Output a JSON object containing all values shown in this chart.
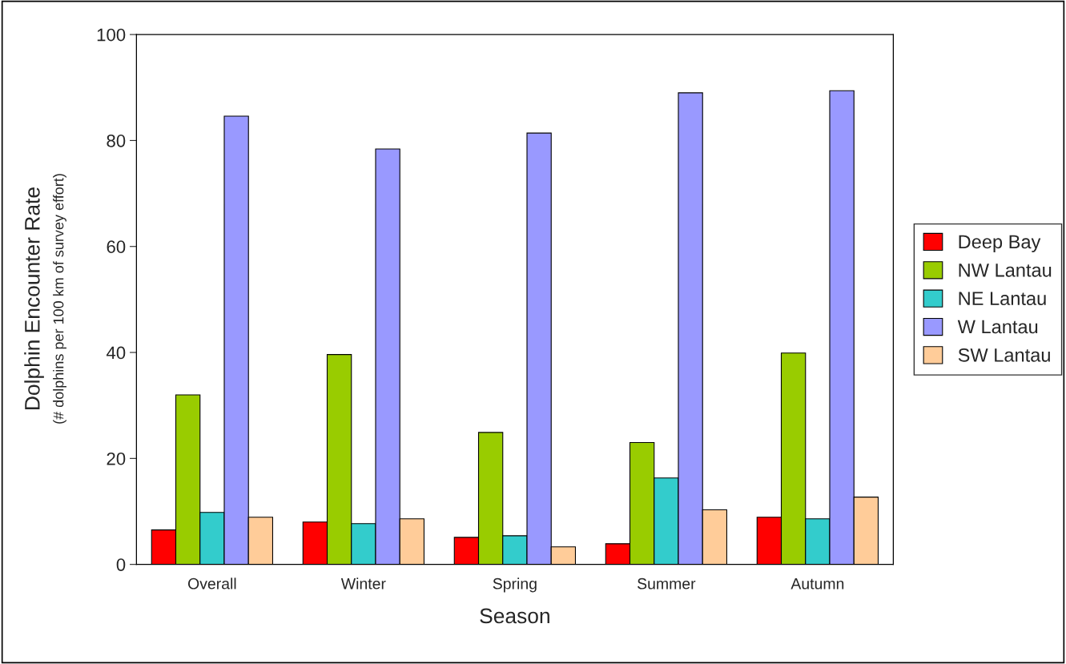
{
  "chart_data": {
    "type": "bar",
    "xlabel": "Season",
    "ylabel": "Dolphin Encounter Rate\n(# dolphins per 100 km of survey effort)",
    "categories": [
      "Overall",
      "Winter",
      "Spring",
      "Summer",
      "Autumn"
    ],
    "series": [
      {
        "name": "Deep Bay",
        "color": "#ff0000",
        "values": [
          6.5,
          8.0,
          5.1,
          3.9,
          8.9
        ]
      },
      {
        "name": "NW Lantau",
        "color": "#99cc00",
        "values": [
          32.0,
          39.6,
          24.9,
          23.0,
          39.9
        ]
      },
      {
        "name": "NE Lantau",
        "color": "#33cccc",
        "values": [
          9.8,
          7.7,
          5.4,
          16.3,
          8.6
        ]
      },
      {
        "name": "W Lantau",
        "color": "#9999ff",
        "values": [
          84.6,
          78.4,
          81.4,
          89.0,
          89.4
        ]
      },
      {
        "name": "SW Lantau",
        "color": "#ffcc99",
        "values": [
          8.9,
          8.6,
          3.3,
          10.3,
          12.7
        ]
      }
    ],
    "ylim": [
      0,
      100
    ],
    "yticks": [
      0,
      20,
      40,
      60,
      80,
      100
    ],
    "grid": false,
    "legend": "right"
  }
}
